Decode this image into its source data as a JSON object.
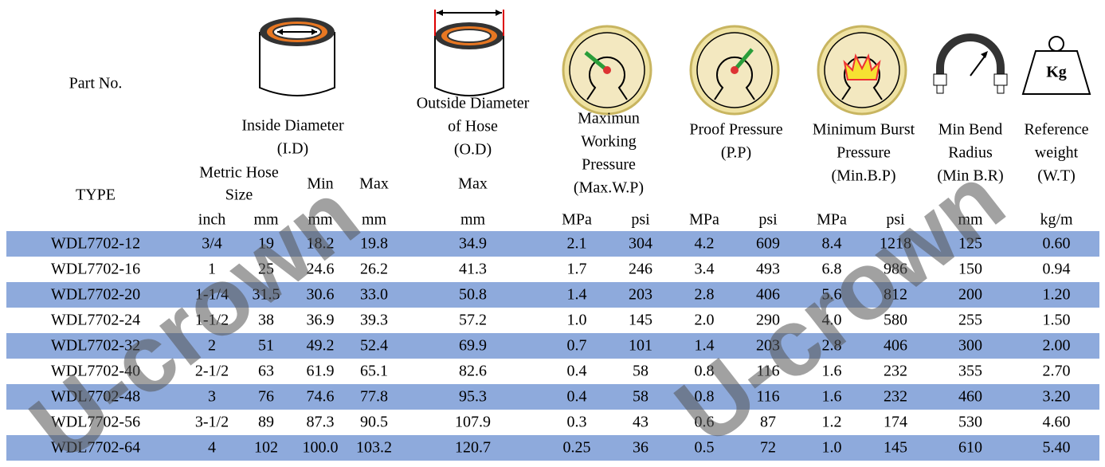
{
  "header": {
    "part_no": "Part No.",
    "type": "TYPE",
    "groups": [
      {
        "lines": [
          "Inside Diameter",
          "(I.D)"
        ]
      },
      {
        "lines": [
          "Outside Diameter",
          "of Hose",
          "(O.D)"
        ]
      },
      {
        "lines": [
          "Maximun",
          "Working",
          "Pressure",
          "(Max.W.P)"
        ]
      },
      {
        "lines": [
          "Proof Pressure",
          "(P.P)"
        ]
      },
      {
        "lines": [
          "Minimum Burst",
          "Pressure",
          "(Min.B.P)"
        ]
      },
      {
        "lines": [
          "Min Bend",
          "Radius",
          "(Min B.R)"
        ]
      },
      {
        "lines": [
          "Reference",
          "weight",
          "(W.T)"
        ]
      }
    ],
    "metric_size": [
      "Metric Hose",
      "Size"
    ],
    "id_min": "Min",
    "id_max": "Max",
    "od_max": "Max",
    "units": [
      "inch",
      "mm",
      "mm",
      "mm",
      "mm",
      "MPa",
      "psi",
      "MPa",
      "psi",
      "MPa",
      "psi",
      "mm",
      "kg/m"
    ],
    "weight_icon": "Kg"
  },
  "rows": [
    [
      "WDL7702-12",
      "3/4",
      "19",
      "18.2",
      "19.8",
      "34.9",
      "2.1",
      "304",
      "4.2",
      "609",
      "8.4",
      "1218",
      "125",
      "0.60"
    ],
    [
      "WDL7702-16",
      "1",
      "25",
      "24.6",
      "26.2",
      "41.3",
      "1.7",
      "246",
      "3.4",
      "493",
      "6.8",
      "986",
      "150",
      "0.94"
    ],
    [
      "WDL7702-20",
      "1-1/4",
      "31.5",
      "30.6",
      "33.0",
      "50.8",
      "1.4",
      "203",
      "2.8",
      "406",
      "5.6",
      "812",
      "200",
      "1.20"
    ],
    [
      "WDL7702-24",
      "1-1/2",
      "38",
      "36.9",
      "39.3",
      "57.2",
      "1.0",
      "145",
      "2.0",
      "290",
      "4.0",
      "580",
      "255",
      "1.50"
    ],
    [
      "WDL7702-32",
      "2",
      "51",
      "49.2",
      "52.4",
      "69.9",
      "0.7",
      "101",
      "1.4",
      "203",
      "2.8",
      "406",
      "300",
      "2.00"
    ],
    [
      "WDL7702-40",
      "2-1/2",
      "63",
      "61.9",
      "65.1",
      "82.6",
      "0.4",
      "58",
      "0.8",
      "116",
      "1.6",
      "232",
      "355",
      "2.70"
    ],
    [
      "WDL7702-48",
      "3",
      "76",
      "74.6",
      "77.8",
      "95.3",
      "0.4",
      "58",
      "0.8",
      "116",
      "1.6",
      "232",
      "460",
      "3.20"
    ],
    [
      "WDL7702-56",
      "3-1/2",
      "89",
      "87.3",
      "90.5",
      "107.9",
      "0.3",
      "43",
      "0.6",
      "87",
      "1.2",
      "174",
      "530",
      "4.60"
    ],
    [
      "WDL7702-64",
      "4",
      "102",
      "100.0",
      "103.2",
      "120.7",
      "0.25",
      "36",
      "0.5",
      "72",
      "1.0",
      "145",
      "610",
      "5.40"
    ]
  ],
  "watermark": "U-crown"
}
